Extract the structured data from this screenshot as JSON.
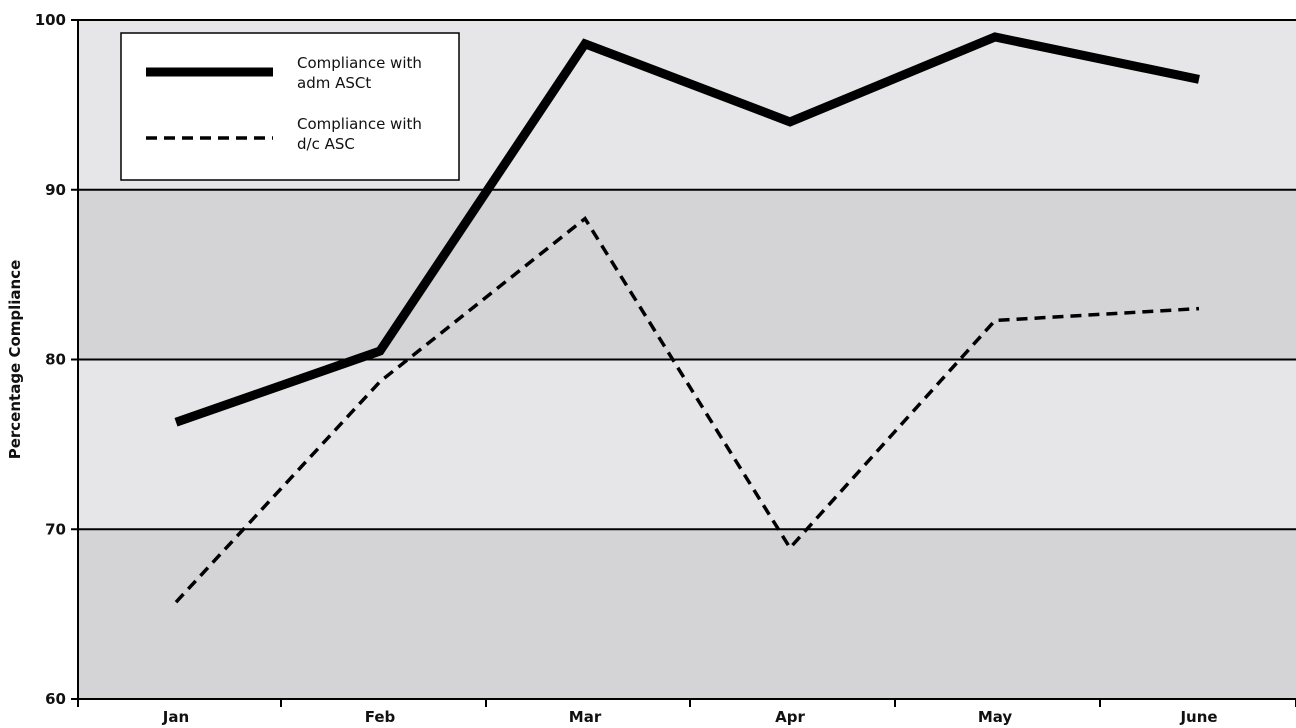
{
  "chart_data": {
    "type": "line",
    "title": "",
    "xlabel": "",
    "ylabel": "Percentage Compliance",
    "categories": [
      "Jan",
      "Feb",
      "Mar",
      "Apr",
      "May",
      "June"
    ],
    "ylim": [
      60,
      100
    ],
    "yticks": [
      60,
      70,
      80,
      90,
      100
    ],
    "grid": true,
    "legend_position": "top-left",
    "series": [
      {
        "name_lines": [
          "Compliance with",
          "adm ASCt"
        ],
        "style": "solid-thick",
        "color": "#000000",
        "values": [
          76.3,
          80.5,
          98.6,
          94.0,
          99.0,
          96.5
        ]
      },
      {
        "name_lines": [
          "Compliance with",
          "d/c ASC"
        ],
        "style": "dashed",
        "color": "#000000",
        "values": [
          65.7,
          78.7,
          88.3,
          68.9,
          82.3,
          83.0
        ]
      }
    ],
    "bands": [
      {
        "from": 60,
        "to": 70,
        "color": "#d4d4d6"
      },
      {
        "from": 70,
        "to": 80,
        "color": "#e6e6e8"
      },
      {
        "from": 80,
        "to": 90,
        "color": "#d4d4d6"
      },
      {
        "from": 90,
        "to": 100,
        "color": "#e6e6e8"
      }
    ]
  }
}
